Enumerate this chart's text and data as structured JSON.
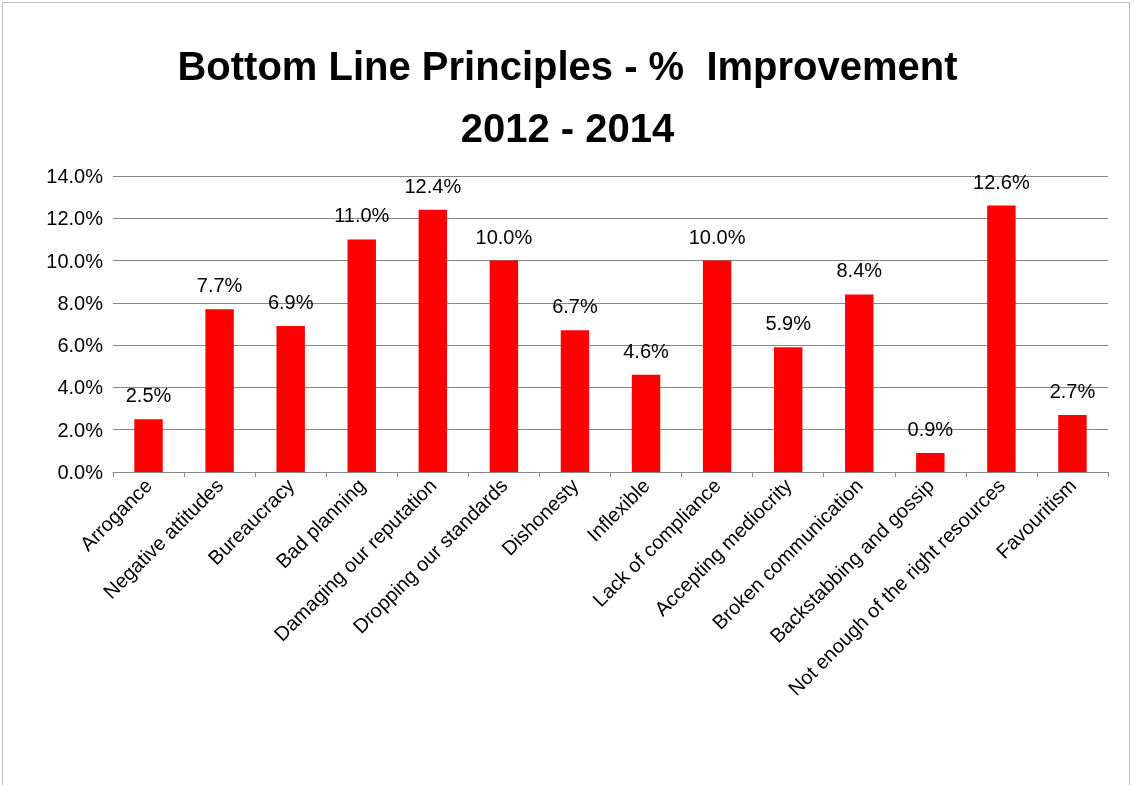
{
  "chart_data": {
    "type": "bar",
    "title": "Bottom Line Principles - %  Improvement\n2012 - 2014",
    "categories": [
      "Arrogance",
      "Negative attitudes",
      "Bureaucracy",
      "Bad planning",
      "Damaging our reputation",
      "Dropping our standards",
      "Dishonesty",
      "Inflexible",
      "Lack of compliance",
      "Accepting mediocrity",
      "Broken communication",
      "Backstabbing and gossip",
      "Not enough of the right resources",
      "Favouritism"
    ],
    "values": [
      2.5,
      7.7,
      6.9,
      11.0,
      12.4,
      10.0,
      6.7,
      4.6,
      10.0,
      5.9,
      8.4,
      0.9,
      12.6,
      2.7
    ],
    "value_labels": [
      "2.5%",
      "7.7%",
      "6.9%",
      "11.0%",
      "12.4%",
      "10.0%",
      "6.7%",
      "4.6%",
      "10.0%",
      "5.9%",
      "8.4%",
      "0.9%",
      "12.6%",
      "2.7%"
    ],
    "color": "#ff0000",
    "ylim": [
      0,
      14
    ],
    "yticks": [
      {
        "value": 0,
        "label": "0.0%"
      },
      {
        "value": 2,
        "label": "2.0%"
      },
      {
        "value": 4,
        "label": "4.0%"
      },
      {
        "value": 6,
        "label": "6.0%"
      },
      {
        "value": 8,
        "label": "8.0%"
      },
      {
        "value": 10,
        "label": "10.0%"
      },
      {
        "value": 12,
        "label": "12.0%"
      },
      {
        "value": 14,
        "label": "14.0%"
      }
    ],
    "grid": "y"
  }
}
